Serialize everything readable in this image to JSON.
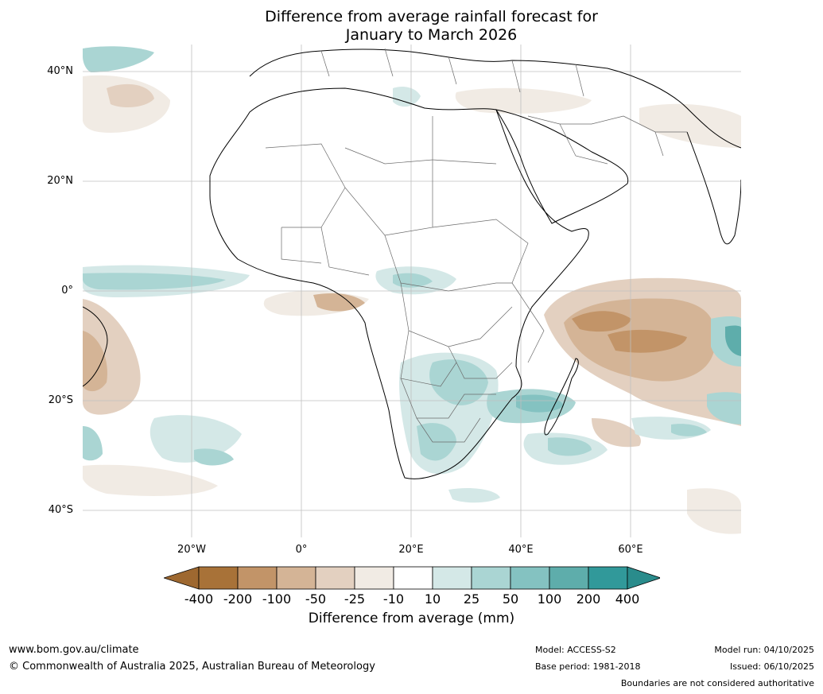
{
  "title_line1": "Difference from average rainfall forecast for",
  "title_line2": "January to March 2026",
  "lat_labels": [
    "40°N",
    "20°N",
    "0°",
    "20°S",
    "40°S"
  ],
  "lon_labels": [
    "20°W",
    "0°",
    "20°E",
    "40°E",
    "60°E"
  ],
  "legend": {
    "ticks": [
      "-400",
      "-200",
      "-100",
      "-50",
      "-25",
      "-10",
      "10",
      "25",
      "50",
      "100",
      "200",
      "400"
    ],
    "colors": [
      "#a87238",
      "#c29468",
      "#d4b496",
      "#e3d0c0",
      "#f1ebe4",
      "#ffffff",
      "#d4e8e7",
      "#aad5d3",
      "#84c2c1",
      "#5eadab",
      "#31999a"
    ],
    "extend_low_color": "#9e6830",
    "extend_high_color": "#2a8c8c",
    "title": "Difference from average (mm)"
  },
  "footer": {
    "url": "www.bom.gov.au/climate",
    "copyright": "© Commonwealth of Australia 2025, Australian Bureau of Meteorology",
    "model": "Model: ACCESS-S2",
    "base_period": "Base period: 1981-2018",
    "model_run": "Model run: 04/10/2025",
    "issued": "Issued: 06/10/2025",
    "disclaimer": "Boundaries are not considered authoritative"
  }
}
